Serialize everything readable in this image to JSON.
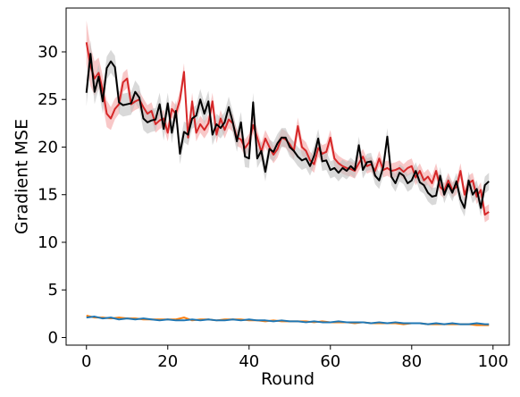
{
  "chart_data": {
    "type": "line",
    "title": "",
    "xlabel": "Round",
    "ylabel": "Gradient MSE",
    "xlim": [
      -5,
      104
    ],
    "ylim": [
      -0.8,
      34.6
    ],
    "xticks": [
      0,
      20,
      40,
      60,
      80,
      100
    ],
    "yticks": [
      0,
      5,
      10,
      15,
      20,
      25,
      30
    ],
    "grid": false,
    "legend": "none",
    "series": [
      {
        "color": "#d62728",
        "band_color": "#f4a3a3",
        "band_halfwidth": [
          2.3,
          2.1,
          1.8,
          1.6,
          1.5,
          1.4,
          1.2,
          1.1,
          1.0,
          1.0,
          1.0,
          0.9,
          0.9,
          0.9,
          0.9,
          0.9,
          0.9,
          0.9,
          0.9,
          0.9,
          0.9,
          0.9,
          0.9,
          0.9,
          0.9,
          0.9,
          0.9,
          0.9,
          0.9,
          0.9,
          0.9,
          0.9,
          0.9,
          0.9,
          0.9,
          0.9,
          0.9,
          0.9,
          0.9,
          0.9,
          0.9,
          0.9,
          0.9,
          0.9,
          0.9,
          0.9,
          0.9,
          0.9,
          0.9,
          0.9,
          0.9,
          0.9,
          0.9,
          0.9,
          0.9,
          0.9,
          0.9,
          0.9,
          0.9,
          0.9,
          0.8,
          0.8,
          0.8,
          0.8,
          0.8,
          0.8,
          0.8,
          0.8,
          0.8,
          0.8,
          0.8,
          0.8,
          0.8,
          0.8,
          0.8,
          0.8,
          0.8,
          0.8,
          0.8,
          0.8,
          0.8,
          0.8,
          0.8,
          0.8,
          0.8,
          0.8,
          0.8,
          0.8,
          0.8,
          0.8,
          0.8,
          0.8,
          0.8,
          0.8,
          0.8,
          0.8,
          0.8,
          0.8,
          0.8,
          0.8
        ],
        "x": [
          0,
          1,
          2,
          3,
          4,
          5,
          6,
          7,
          8,
          9,
          10,
          11,
          12,
          13,
          14,
          15,
          16,
          17,
          18,
          19,
          20,
          21,
          22,
          23,
          24,
          25,
          26,
          27,
          28,
          29,
          30,
          31,
          32,
          33,
          34,
          35,
          36,
          37,
          38,
          39,
          40,
          41,
          42,
          43,
          44,
          45,
          46,
          47,
          48,
          49,
          50,
          51,
          52,
          53,
          54,
          55,
          56,
          57,
          58,
          59,
          60,
          61,
          62,
          63,
          64,
          65,
          66,
          67,
          68,
          69,
          70,
          71,
          72,
          73,
          74,
          75,
          76,
          77,
          78,
          79,
          80,
          81,
          82,
          83,
          84,
          85,
          86,
          87,
          88,
          89,
          90,
          91,
          92,
          93,
          94,
          95,
          96,
          97,
          98,
          99
        ],
        "values": [
          31.0,
          28.5,
          27.2,
          27.8,
          26.0,
          23.5,
          23.0,
          24.0,
          24.5,
          26.8,
          27.2,
          24.5,
          24.8,
          25.0,
          24.2,
          23.5,
          23.8,
          22.4,
          22.8,
          23.0,
          21.5,
          24.0,
          23.5,
          25.0,
          27.9,
          21.0,
          24.8,
          21.5,
          22.4,
          21.8,
          22.5,
          24.8,
          21.3,
          23.0,
          21.8,
          22.9,
          22.5,
          21.0,
          20.8,
          19.9,
          20.5,
          22.3,
          21.0,
          19.5,
          20.9,
          20.0,
          19.2,
          19.8,
          21.0,
          20.8,
          20.3,
          19.6,
          22.2,
          20.0,
          19.6,
          18.6,
          18.2,
          19.9,
          19.3,
          19.5,
          21.0,
          18.8,
          18.3,
          18.0,
          17.8,
          17.7,
          17.5,
          18.3,
          19.0,
          18.0,
          18.2,
          17.5,
          18.8,
          17.6,
          17.8,
          17.5,
          17.6,
          17.8,
          17.4,
          17.8,
          18.0,
          16.8,
          17.5,
          16.5,
          16.9,
          16.2,
          17.5,
          15.8,
          15.4,
          16.5,
          15.5,
          15.8,
          17.5,
          15.0,
          16.2,
          16.5,
          14.8,
          15.5,
          12.9,
          13.2
        ]
      },
      {
        "color": "#000000",
        "band_color": "#bfbfbf",
        "band_halfwidth": [
          1.4,
          1.4,
          1.3,
          1.3,
          1.3,
          1.2,
          1.2,
          1.2,
          1.2,
          1.2,
          1.2,
          1.2,
          1.2,
          1.2,
          1.2,
          1.2,
          1.2,
          1.2,
          1.2,
          1.2,
          1.1,
          1.1,
          1.1,
          1.1,
          1.1,
          1.1,
          1.1,
          1.1,
          1.1,
          1.1,
          1.1,
          1.1,
          1.1,
          1.1,
          1.1,
          1.1,
          1.1,
          1.1,
          1.1,
          1.1,
          1.0,
          1.0,
          1.0,
          1.0,
          1.0,
          1.0,
          1.0,
          1.0,
          1.0,
          1.0,
          1.0,
          1.0,
          1.0,
          1.0,
          1.0,
          1.0,
          1.0,
          1.0,
          1.0,
          1.0,
          0.9,
          0.9,
          0.9,
          0.9,
          0.9,
          0.9,
          0.9,
          0.9,
          0.9,
          0.9,
          0.9,
          0.9,
          0.9,
          0.9,
          0.9,
          0.9,
          0.9,
          0.9,
          0.9,
          0.9,
          0.9,
          0.9,
          0.9,
          0.9,
          0.9,
          0.9,
          0.9,
          0.9,
          0.9,
          0.9,
          0.9,
          0.9,
          0.9,
          0.9,
          0.9,
          0.9,
          0.9,
          0.9,
          0.9,
          0.9
        ],
        "x": [
          0,
          1,
          2,
          3,
          4,
          5,
          6,
          7,
          8,
          9,
          10,
          11,
          12,
          13,
          14,
          15,
          16,
          17,
          18,
          19,
          20,
          21,
          22,
          23,
          24,
          25,
          26,
          27,
          28,
          29,
          30,
          31,
          32,
          33,
          34,
          35,
          36,
          37,
          38,
          39,
          40,
          41,
          42,
          43,
          44,
          45,
          46,
          47,
          48,
          49,
          50,
          51,
          52,
          53,
          54,
          55,
          56,
          57,
          58,
          59,
          60,
          61,
          62,
          63,
          64,
          65,
          66,
          67,
          68,
          69,
          70,
          71,
          72,
          73,
          74,
          75,
          76,
          77,
          78,
          79,
          80,
          81,
          82,
          83,
          84,
          85,
          86,
          87,
          88,
          89,
          90,
          91,
          92,
          93,
          94,
          95,
          96,
          97,
          98,
          99
        ],
        "values": [
          25.7,
          29.8,
          25.8,
          27.4,
          24.8,
          28.3,
          29.0,
          28.4,
          24.7,
          24.4,
          24.5,
          24.6,
          25.8,
          25.2,
          23.0,
          22.6,
          22.8,
          22.9,
          24.5,
          21.9,
          24.6,
          21.5,
          23.8,
          19.3,
          21.6,
          21.3,
          23.0,
          23.3,
          25.0,
          23.5,
          24.8,
          21.3,
          22.4,
          22.0,
          22.6,
          24.2,
          22.6,
          20.6,
          22.6,
          19.0,
          18.8,
          24.7,
          18.8,
          19.6,
          17.4,
          19.8,
          19.5,
          20.4,
          21.0,
          21.0,
          20.0,
          19.6,
          19.0,
          18.6,
          18.8,
          18.0,
          19.1,
          20.9,
          18.5,
          18.6,
          17.6,
          17.8,
          17.3,
          17.8,
          17.5,
          18.0,
          17.6,
          20.2,
          17.6,
          18.4,
          18.5,
          17.0,
          16.5,
          17.9,
          21.1,
          16.9,
          16.2,
          17.3,
          17.0,
          16.2,
          16.5,
          17.5,
          16.3,
          16.0,
          15.2,
          14.8,
          14.9,
          17.0,
          15.0,
          16.1,
          15.2,
          16.4,
          14.5,
          13.6,
          16.5,
          15.0,
          15.6,
          13.6,
          16.0,
          16.4
        ]
      },
      {
        "color": "#ff7f0e",
        "x": [
          0,
          2,
          4,
          6,
          8,
          10,
          12,
          14,
          16,
          18,
          20,
          22,
          24,
          26,
          28,
          30,
          32,
          34,
          36,
          38,
          40,
          42,
          44,
          46,
          48,
          50,
          52,
          54,
          56,
          58,
          60,
          62,
          64,
          66,
          68,
          70,
          72,
          74,
          76,
          78,
          80,
          82,
          84,
          86,
          88,
          90,
          92,
          94,
          96,
          98,
          99
        ],
        "values": [
          2.3,
          2.1,
          2.1,
          2.0,
          2.1,
          2.0,
          2.0,
          1.9,
          1.9,
          1.9,
          1.9,
          1.9,
          2.1,
          1.8,
          1.9,
          1.9,
          1.8,
          1.9,
          1.9,
          1.9,
          1.8,
          1.8,
          1.7,
          1.8,
          1.7,
          1.7,
          1.7,
          1.7,
          1.6,
          1.7,
          1.6,
          1.6,
          1.6,
          1.5,
          1.6,
          1.5,
          1.5,
          1.5,
          1.5,
          1.4,
          1.5,
          1.5,
          1.4,
          1.4,
          1.4,
          1.4,
          1.4,
          1.4,
          1.3,
          1.3,
          1.3
        ]
      },
      {
        "color": "#1f77b4",
        "x": [
          0,
          2,
          4,
          6,
          8,
          10,
          12,
          14,
          16,
          18,
          20,
          22,
          24,
          26,
          28,
          30,
          32,
          34,
          36,
          38,
          40,
          42,
          44,
          46,
          48,
          50,
          52,
          54,
          56,
          58,
          60,
          62,
          64,
          66,
          68,
          70,
          72,
          74,
          76,
          78,
          80,
          82,
          84,
          86,
          88,
          90,
          92,
          94,
          96,
          98,
          99
        ],
        "values": [
          2.1,
          2.2,
          2.0,
          2.1,
          1.9,
          2.0,
          1.9,
          2.0,
          1.9,
          1.8,
          1.9,
          1.8,
          1.8,
          1.9,
          1.8,
          1.9,
          1.8,
          1.8,
          1.9,
          1.8,
          1.9,
          1.8,
          1.8,
          1.7,
          1.8,
          1.7,
          1.7,
          1.6,
          1.7,
          1.6,
          1.6,
          1.7,
          1.6,
          1.6,
          1.6,
          1.5,
          1.6,
          1.5,
          1.6,
          1.5,
          1.5,
          1.5,
          1.4,
          1.5,
          1.4,
          1.5,
          1.4,
          1.4,
          1.5,
          1.4,
          1.4
        ]
      }
    ]
  }
}
